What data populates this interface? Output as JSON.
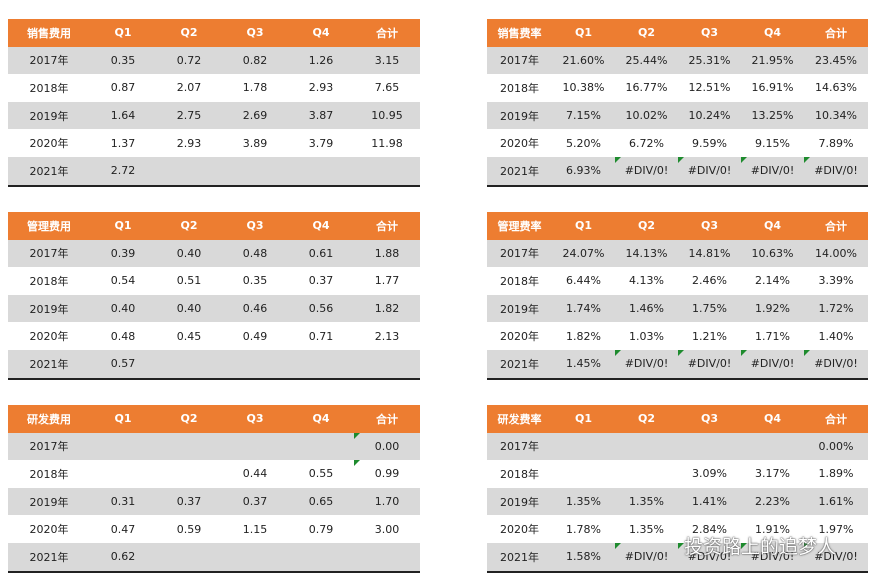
{
  "tables": [
    {
      "headers": [
        "销售费用",
        "Q1",
        "Q2",
        "Q3",
        "Q4",
        "合计"
      ],
      "rows": [
        [
          "2017年",
          "0.35",
          "0.72",
          "0.82",
          "1.26",
          "3.15"
        ],
        [
          "2018年",
          "0.87",
          "2.07",
          "1.78",
          "2.93",
          "7.65"
        ],
        [
          "2019年",
          "1.64",
          "2.75",
          "2.69",
          "3.87",
          "10.95"
        ],
        [
          "2020年",
          "1.37",
          "2.93",
          "3.89",
          "3.79",
          "11.98"
        ],
        [
          "2021年",
          "2.72",
          null,
          null,
          null,
          null
        ]
      ]
    },
    {
      "headers": [
        "销售费率",
        "Q1",
        "Q2",
        "Q3",
        "Q4",
        "合计"
      ],
      "rows": [
        [
          "2017年",
          "21.60%",
          "25.44%",
          "25.31%",
          "21.95%",
          "23.45%"
        ],
        [
          "2018年",
          "10.38%",
          "16.77%",
          "12.51%",
          "16.91%",
          "14.63%"
        ],
        [
          "2019年",
          "7.15%",
          "10.02%",
          "10.24%",
          "13.25%",
          "10.34%"
        ],
        [
          "2020年",
          "5.20%",
          "6.72%",
          "9.59%",
          "9.15%",
          "7.89%"
        ],
        [
          "2021年",
          "6.93%",
          "#DIV/0!",
          "#DIV/0!",
          "#DIV/0!",
          "#DIV/0!"
        ]
      ]
    },
    {
      "headers": [
        "管理费用",
        "Q1",
        "Q2",
        "Q3",
        "Q4",
        "合计"
      ],
      "rows": [
        [
          "2017年",
          "0.39",
          "0.40",
          "0.48",
          "0.61",
          "1.88"
        ],
        [
          "2018年",
          "0.54",
          "0.51",
          "0.35",
          "0.37",
          "1.77"
        ],
        [
          "2019年",
          "0.40",
          "0.40",
          "0.46",
          "0.56",
          "1.82"
        ],
        [
          "2020年",
          "0.48",
          "0.45",
          "0.49",
          "0.71",
          "2.13"
        ],
        [
          "2021年",
          "0.57",
          null,
          null,
          null,
          null
        ]
      ]
    },
    {
      "headers": [
        "管理费率",
        "Q1",
        "Q2",
        "Q3",
        "Q4",
        "合计"
      ],
      "rows": [
        [
          "2017年",
          "24.07%",
          "14.13%",
          "14.81%",
          "10.63%",
          "14.00%"
        ],
        [
          "2018年",
          "6.44%",
          "4.13%",
          "2.46%",
          "2.14%",
          "3.39%"
        ],
        [
          "2019年",
          "1.74%",
          "1.46%",
          "1.75%",
          "1.92%",
          "1.72%"
        ],
        [
          "2020年",
          "1.82%",
          "1.03%",
          "1.21%",
          "1.71%",
          "1.40%"
        ],
        [
          "2021年",
          "1.45%",
          "#DIV/0!",
          "#DIV/0!",
          "#DIV/0!",
          "#DIV/0!"
        ]
      ]
    },
    {
      "headers": [
        "研发费用",
        "Q1",
        "Q2",
        "Q3",
        "Q4",
        "合计"
      ],
      "rows": [
        [
          "2017年",
          null,
          null,
          null,
          null,
          "0.00"
        ],
        [
          "2018年",
          null,
          null,
          "0.44",
          "0.55",
          "0.99"
        ],
        [
          "2019年",
          "0.31",
          "0.37",
          "0.37",
          "0.65",
          "1.70"
        ],
        [
          "2020年",
          "0.47",
          "0.59",
          "1.15",
          "0.79",
          "3.00"
        ],
        [
          "2021年",
          "0.62",
          null,
          null,
          null,
          null
        ]
      ]
    },
    {
      "headers": [
        "研发费率",
        "Q1",
        "Q2",
        "Q3",
        "Q4",
        "合计"
      ],
      "rows": [
        [
          "2017年",
          null,
          null,
          null,
          null,
          "0.00%"
        ],
        [
          "2018年",
          null,
          null,
          "3.09%",
          "3.17%",
          "1.89%"
        ],
        [
          "2019年",
          "1.35%",
          "1.35%",
          "1.41%",
          "2.23%",
          "1.61%"
        ],
        [
          "2020年",
          "1.78%",
          "1.35%",
          "2.84%",
          "1.91%",
          "1.97%"
        ],
        [
          "2021年",
          "1.58%",
          "#DIV/0!",
          "#DIV/0!",
          "#DIV/0!",
          "#DIV/0!"
        ]
      ]
    }
  ],
  "watermark": "投资路上的追梦人"
}
